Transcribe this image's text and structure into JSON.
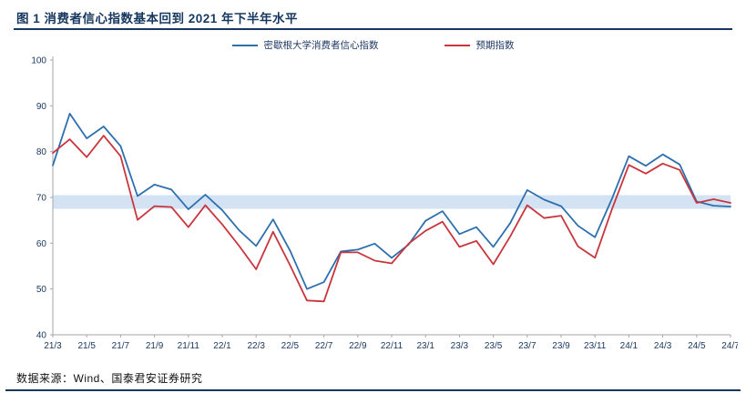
{
  "header": {
    "title": "图 1 消费者信心指数基本回到 2021 年下半年水平"
  },
  "footer": {
    "source": "数据来源：Wind、国泰君安证券研究"
  },
  "colors": {
    "accent_navy": "#17375e",
    "axis_line": "#a6a6a6",
    "tick_text": "#17375e",
    "band_blue": "#d3e3f4",
    "series_blue": "#2e6fae",
    "series_red": "#c9353d"
  },
  "chart_data": {
    "type": "line",
    "title": "图 1 消费者信心指数基本回到 2021 年下半年水平",
    "xlabel": "",
    "ylabel": "",
    "ylim": [
      40,
      100
    ],
    "y_ticks": [
      40,
      50,
      60,
      70,
      80,
      90,
      100
    ],
    "grid": false,
    "legend_position": "top-center",
    "x": [
      "21/3",
      "21/4",
      "21/5",
      "21/6",
      "21/7",
      "21/8",
      "21/9",
      "21/10",
      "21/11",
      "21/12",
      "22/1",
      "22/2",
      "22/3",
      "22/4",
      "22/5",
      "22/6",
      "22/7",
      "22/8",
      "22/9",
      "22/10",
      "22/11",
      "22/12",
      "23/1",
      "23/2",
      "23/3",
      "23/4",
      "23/5",
      "23/6",
      "23/7",
      "23/8",
      "23/9",
      "23/10",
      "23/11",
      "23/12",
      "24/1",
      "24/2",
      "24/3",
      "24/4",
      "24/5",
      "24/6",
      "24/7"
    ],
    "x_tick_labels": [
      "21/3",
      "21/5",
      "21/7",
      "21/9",
      "21/11",
      "22/1",
      "22/3",
      "22/5",
      "22/7",
      "22/9",
      "22/11",
      "23/1",
      "23/3",
      "23/5",
      "23/7",
      "23/9",
      "23/11",
      "24/1",
      "24/3",
      "24/5",
      "24/7"
    ],
    "x_tick_step": 2,
    "series": [
      {
        "name": "密歇根大学消费者信心指数",
        "color": "#2e6fae",
        "values": [
          77.0,
          88.3,
          82.9,
          85.5,
          81.2,
          70.3,
          72.8,
          71.7,
          67.4,
          70.6,
          67.2,
          62.8,
          59.4,
          65.2,
          58.4,
          50.0,
          51.5,
          58.2,
          58.6,
          59.9,
          56.8,
          59.7,
          64.9,
          67.0,
          62.0,
          63.5,
          59.2,
          64.4,
          71.6,
          69.5,
          68.1,
          63.8,
          61.3,
          69.7,
          79.0,
          76.9,
          79.4,
          77.2,
          69.1,
          68.2,
          68.0
        ]
      },
      {
        "name": "预期指数",
        "color": "#c9353d",
        "values": [
          79.7,
          82.7,
          78.8,
          83.5,
          79.0,
          65.1,
          68.1,
          67.9,
          63.5,
          68.3,
          64.1,
          59.4,
          54.3,
          62.5,
          55.2,
          47.5,
          47.3,
          58.0,
          58.0,
          56.2,
          55.6,
          59.9,
          62.7,
          64.7,
          59.2,
          60.5,
          55.4,
          61.5,
          68.3,
          65.5,
          66.0,
          59.3,
          56.8,
          67.4,
          77.1,
          75.2,
          77.4,
          76.0,
          68.8,
          69.6,
          68.8
        ]
      }
    ],
    "highlight_band": {
      "from": 67.5,
      "to": 70.5,
      "color": "#d3e3f4"
    }
  }
}
